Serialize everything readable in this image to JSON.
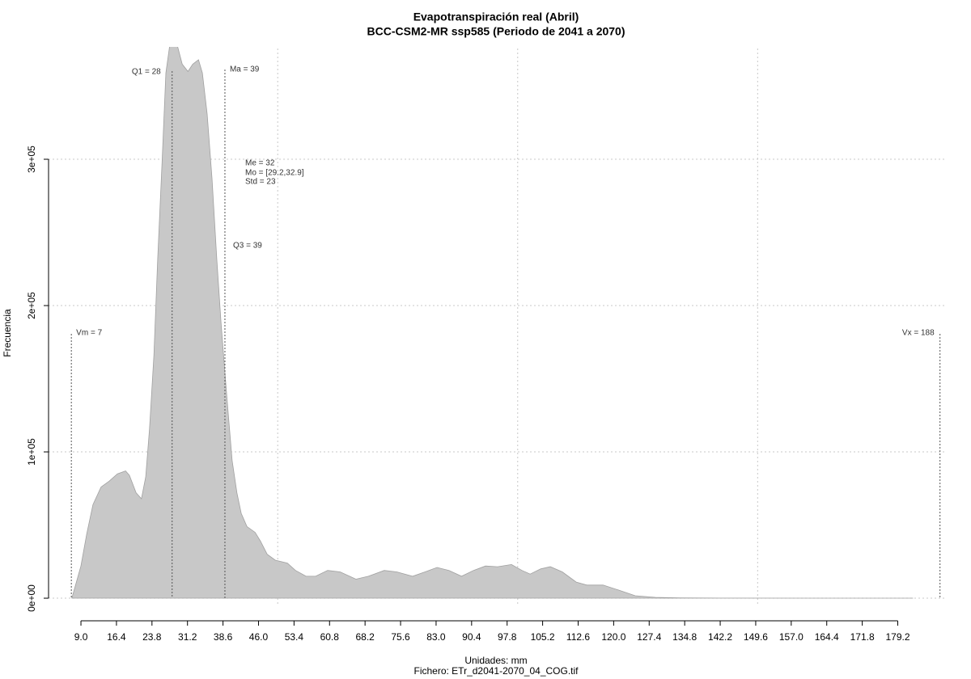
{
  "chart_data": {
    "type": "area",
    "title": "Evapotranspiración real (Abril)",
    "subtitle": "BCC-CSM2-MR ssp585 (Periodo de 2041 a 2070)",
    "x_label": "Unidades: mm",
    "caption": "Fichero: ETr_d2041-2070_04_COG.tif",
    "y_label": "Frecuencia",
    "color": "#c8c8c8",
    "x": [
      7.1,
      9.0,
      10.2,
      11.5,
      13.2,
      14.9,
      16.6,
      18.3,
      19.1,
      20.5,
      21.6,
      22.5,
      23.3,
      24.2,
      25.0,
      25.9,
      26.7,
      27.5,
      28.9,
      30.1,
      31.3,
      32.3,
      33.5,
      34.3,
      35.3,
      36.3,
      37.3,
      38.2,
      39.4,
      40.5,
      41.5,
      42.4,
      43.6,
      45.3,
      46.4,
      47.8,
      49.5,
      52.0,
      53.7,
      55.9,
      57.9,
      60.4,
      63.0,
      66.3,
      68.9,
      72.2,
      74.8,
      78.1,
      80.7,
      83.2,
      85.7,
      88.3,
      90.8,
      93.3,
      95.8,
      98.7,
      100.9,
      102.6,
      104.8,
      106.8,
      109.3,
      112.2,
      114.4,
      117.8,
      121.1,
      124.5,
      128.7,
      133.8,
      143.9,
      160.8,
      182.4
    ],
    "values": [
      0,
      22000,
      44000,
      64000,
      76000,
      80000,
      85000,
      87000,
      84000,
      72000,
      68000,
      83000,
      116000,
      166000,
      232000,
      298000,
      359000,
      378000,
      380000,
      365000,
      360000,
      365000,
      368000,
      359000,
      331000,
      287000,
      232000,
      188000,
      138000,
      94000,
      72000,
      58000,
      49000,
      45000,
      39000,
      30000,
      26000,
      24000,
      19000,
      15000,
      15000,
      19000,
      18000,
      13000,
      15000,
      19000,
      18000,
      15000,
      18000,
      21000,
      19000,
      15000,
      19000,
      22000,
      21500,
      23000,
      19000,
      16500,
      20000,
      21500,
      18000,
      11000,
      9000,
      9000,
      5500,
      1700,
      600,
      200,
      100,
      50,
      0
    ],
    "xlim": [
      2.25,
      189.4
    ],
    "ylim": [
      -5500,
      375700
    ],
    "xticks": [
      {
        "value": 9.0,
        "label": "9.0"
      },
      16.4,
      23.8,
      31.2,
      38.6,
      {
        "value": 46.0,
        "label": "46.0"
      },
      53.4,
      60.8,
      68.2,
      75.6,
      {
        "value": 83.0,
        "label": "83.0"
      },
      90.4,
      97.8,
      105.2,
      112.6,
      {
        "value": 120.0,
        "label": "120.0"
      },
      127.4,
      134.8,
      142.2,
      149.6,
      {
        "value": 157.0,
        "label": "157.0"
      },
      164.4,
      171.8,
      179.2
    ],
    "yticks": [
      {
        "value": 0,
        "label": "0e+00"
      },
      {
        "value": 100000,
        "label": "1e+05"
      },
      {
        "value": 200000,
        "label": "2e+05"
      },
      {
        "value": 300000,
        "label": "3e+05"
      }
    ],
    "xgrid": [
      50,
      100,
      150
    ],
    "grid": true,
    "annotations": [
      {
        "text": "Vm = 7",
        "x": 7
      },
      {
        "text": "Q1 = 28",
        "x": 28
      },
      {
        "text": "Ma = 39",
        "x": 39
      },
      {
        "text": "Vx = 188",
        "x": 188
      },
      {
        "text": "Me = 32"
      },
      {
        "text": "Mo = [29.2,32.9]"
      },
      {
        "text": "Std = 23"
      },
      {
        "text": "Q3 = 39"
      }
    ]
  }
}
